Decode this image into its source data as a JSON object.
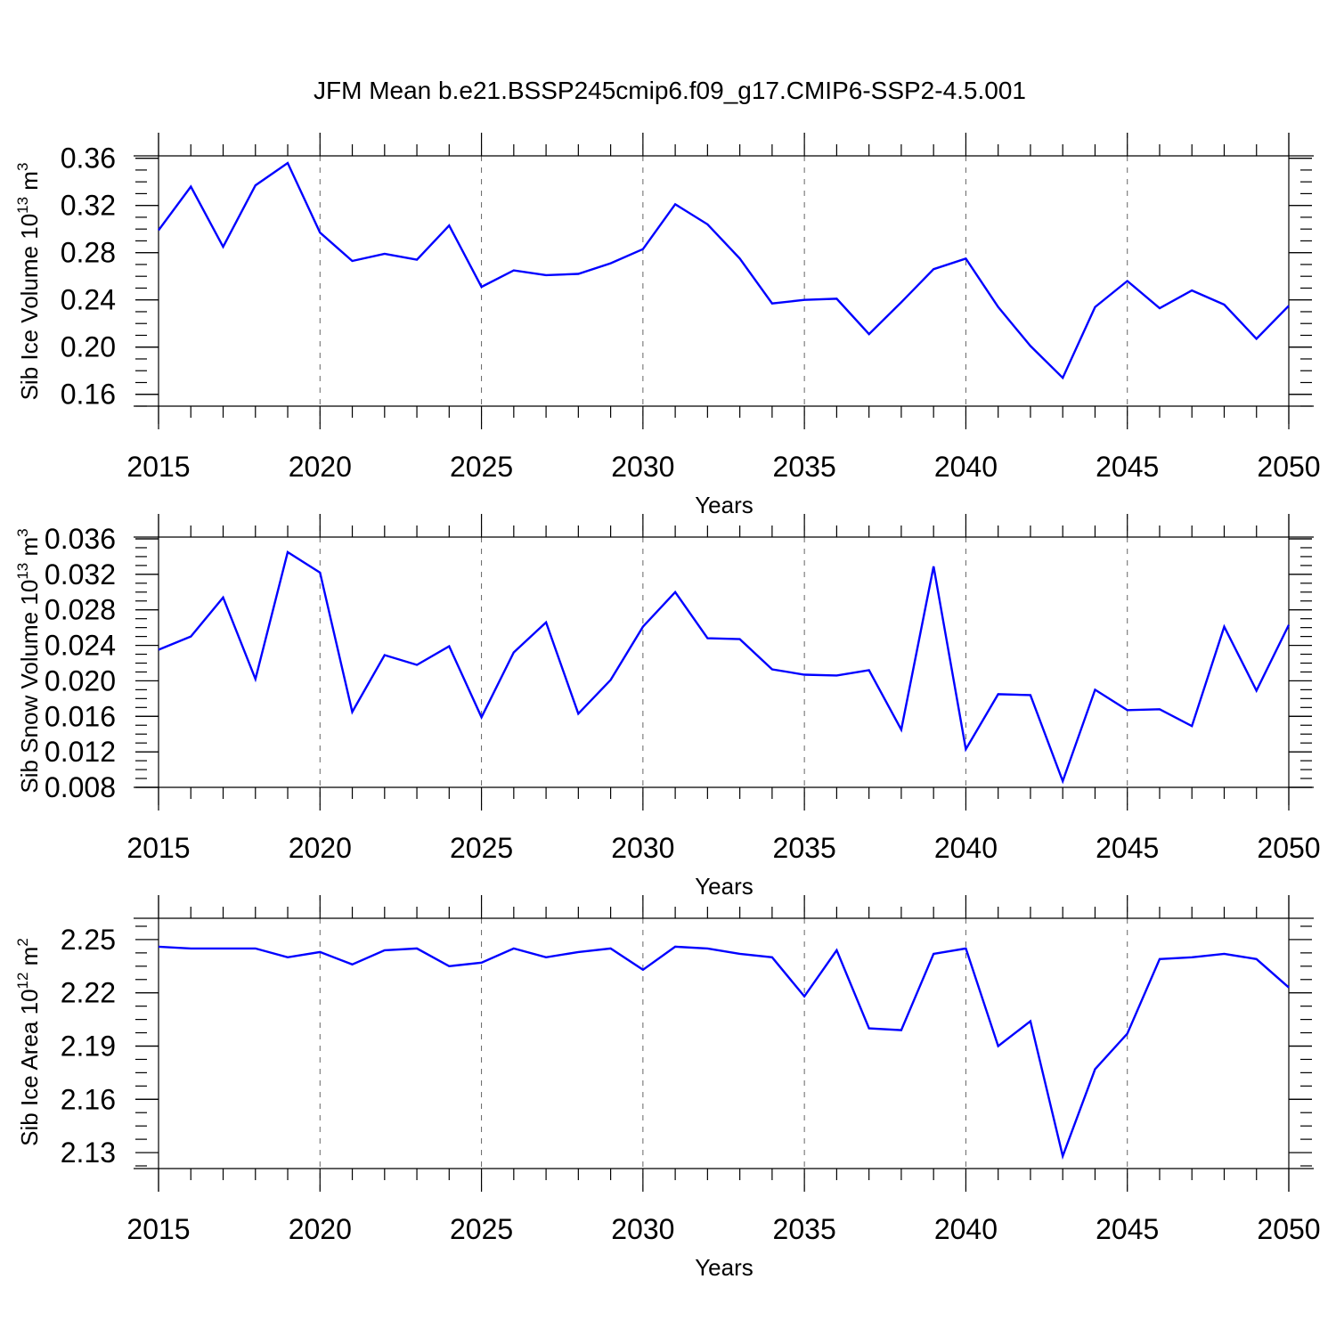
{
  "title": "JFM Mean b.e21.BSSP245cmip6.f09_g17.CMIP6-SSP2-4.5.001",
  "colors": {
    "line": "#0000ff",
    "axis": "#000000",
    "grid": "#666666"
  },
  "chart_data": [
    {
      "type": "line",
      "ylabel": "Sib Ice Volume 10",
      "ylabel_exp": "13",
      "ylabel_unit": " m",
      "ylabel_unit_exp": "3",
      "xlabel": "Years",
      "xlim": [
        2015,
        2050
      ],
      "ylim": [
        0.15,
        0.362
      ],
      "xticks": [
        "2015",
        "2020",
        "2025",
        "2030",
        "2035",
        "2040",
        "2045",
        "2050"
      ],
      "yticks": [
        "0.16",
        "0.20",
        "0.24",
        "0.28",
        "0.32",
        "0.36"
      ],
      "grid": "x-dashed",
      "x": [
        2015,
        2016,
        2017,
        2018,
        2019,
        2020,
        2021,
        2022,
        2023,
        2024,
        2025,
        2026,
        2027,
        2028,
        2029,
        2030,
        2031,
        2032,
        2033,
        2034,
        2035,
        2036,
        2037,
        2038,
        2039,
        2040,
        2041,
        2042,
        2043,
        2044,
        2045,
        2046,
        2047,
        2048,
        2049,
        2050
      ],
      "values": [
        0.299,
        0.336,
        0.285,
        0.337,
        0.356,
        0.297,
        0.273,
        0.279,
        0.274,
        0.303,
        0.251,
        0.265,
        0.261,
        0.262,
        0.271,
        0.283,
        0.321,
        0.304,
        0.275,
        0.237,
        0.24,
        0.241,
        0.211,
        0.238,
        0.266,
        0.275,
        0.234,
        0.201,
        0.174,
        0.234,
        0.256,
        0.233,
        0.248,
        0.236,
        0.207,
        0.235
      ]
    },
    {
      "type": "line",
      "ylabel": "Sib Snow Volume 10",
      "ylabel_exp": "13",
      "ylabel_unit": " m",
      "ylabel_unit_exp": "3",
      "xlabel": "Years",
      "xlim": [
        2015,
        2050
      ],
      "ylim": [
        0.008,
        0.0362
      ],
      "xticks": [
        "2015",
        "2020",
        "2025",
        "2030",
        "2035",
        "2040",
        "2045",
        "2050"
      ],
      "yticks": [
        "0.008",
        "0.012",
        "0.016",
        "0.020",
        "0.024",
        "0.028",
        "0.032",
        "0.036"
      ],
      "grid": "x-dashed",
      "x": [
        2015,
        2016,
        2017,
        2018,
        2019,
        2020,
        2021,
        2022,
        2023,
        2024,
        2025,
        2026,
        2027,
        2028,
        2029,
        2030,
        2031,
        2032,
        2033,
        2034,
        2035,
        2036,
        2037,
        2038,
        2039,
        2040,
        2041,
        2042,
        2043,
        2044,
        2045,
        2046,
        2047,
        2048,
        2049,
        2050
      ],
      "values": [
        0.0235,
        0.025,
        0.0294,
        0.0202,
        0.0345,
        0.0322,
        0.0165,
        0.0229,
        0.0218,
        0.0239,
        0.0159,
        0.0232,
        0.0266,
        0.0163,
        0.0201,
        0.0261,
        0.03,
        0.0248,
        0.0247,
        0.0213,
        0.0207,
        0.0206,
        0.0212,
        0.0145,
        0.0329,
        0.0123,
        0.0185,
        0.0184,
        0.0087,
        0.019,
        0.0167,
        0.0168,
        0.0149,
        0.0261,
        0.0189,
        0.0263
      ]
    },
    {
      "type": "line",
      "ylabel": "Sib Ice Area 10",
      "ylabel_exp": "12",
      "ylabel_unit": " m",
      "ylabel_unit_exp": "2",
      "xlabel": "Years",
      "xlim": [
        2015,
        2050
      ],
      "ylim": [
        2.121,
        2.262
      ],
      "xticks": [
        "2015",
        "2020",
        "2025",
        "2030",
        "2035",
        "2040",
        "2045",
        "2050"
      ],
      "yticks": [
        "2.13",
        "2.16",
        "2.19",
        "2.22",
        "2.25"
      ],
      "grid": "x-dashed",
      "x": [
        2015,
        2016,
        2017,
        2018,
        2019,
        2020,
        2021,
        2022,
        2023,
        2024,
        2025,
        2026,
        2027,
        2028,
        2029,
        2030,
        2031,
        2032,
        2033,
        2034,
        2035,
        2036,
        2037,
        2038,
        2039,
        2040,
        2041,
        2042,
        2043,
        2044,
        2045,
        2046,
        2047,
        2048,
        2049,
        2050
      ],
      "values": [
        2.246,
        2.245,
        2.245,
        2.245,
        2.24,
        2.243,
        2.236,
        2.244,
        2.245,
        2.235,
        2.237,
        2.245,
        2.24,
        2.243,
        2.245,
        2.233,
        2.246,
        2.245,
        2.242,
        2.24,
        2.218,
        2.244,
        2.2,
        2.199,
        2.242,
        2.245,
        2.19,
        2.204,
        2.128,
        2.177,
        2.197,
        2.239,
        2.24,
        2.242,
        2.239,
        2.223
      ]
    }
  ]
}
